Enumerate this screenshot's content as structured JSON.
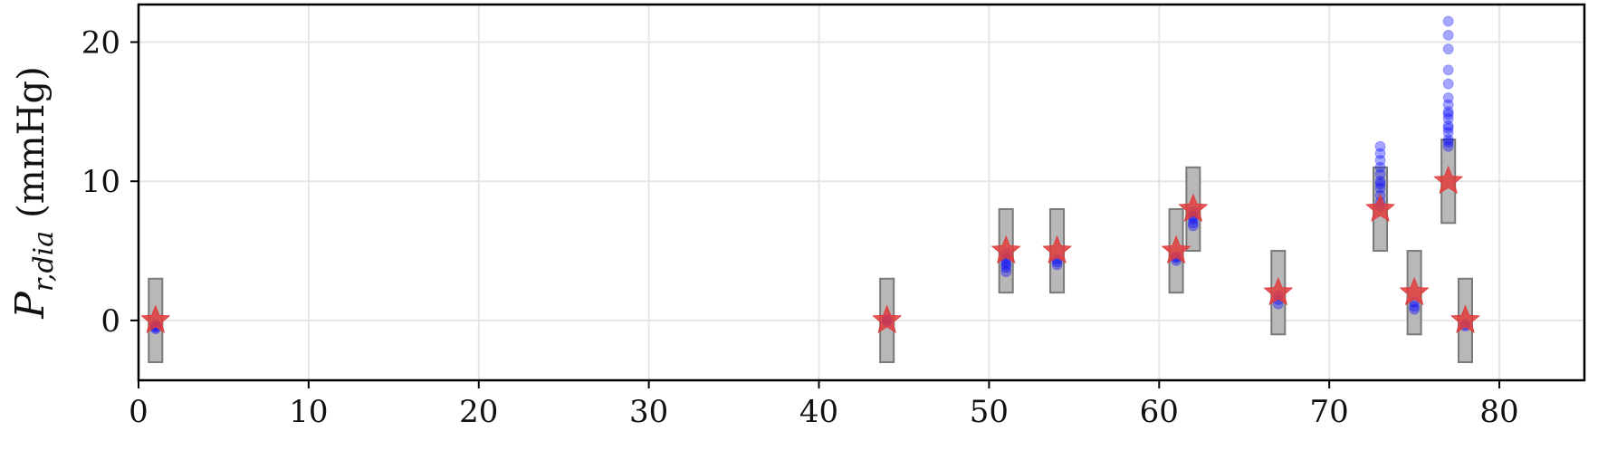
{
  "chart_data": {
    "type": "scatter",
    "title": "",
    "xlabel": "",
    "ylabel": {
      "symbol": "P",
      "subscript": "r,dia",
      "unit": "(mmHg)"
    },
    "xlim": [
      0,
      85
    ],
    "ylim": [
      -4.3,
      22.7
    ],
    "x_ticks": [
      0,
      10,
      20,
      30,
      40,
      50,
      60,
      70,
      80
    ],
    "y_ticks": [
      0,
      10,
      20
    ],
    "x_tick_labels": [
      "0",
      "10",
      "20",
      "30",
      "40",
      "50",
      "60",
      "70",
      "80"
    ],
    "y_tick_labels": [
      "0",
      "10",
      "20"
    ],
    "grid": true,
    "colors": {
      "box_fill": "#b8b8b8",
      "box_edge": "#7a7a7a",
      "star": "#e03c3c",
      "points": "#0000ff",
      "grid": "#e6e6e6",
      "axes": "#000000"
    },
    "groups": [
      {
        "x": 1,
        "target": 0,
        "range": [
          -3,
          3
        ],
        "points": [
          -0.5,
          -0.3,
          -0.6,
          -0.4
        ]
      },
      {
        "x": 44,
        "target": 0,
        "range": [
          -3,
          3
        ],
        "points": [
          0,
          0.1,
          -0.1
        ]
      },
      {
        "x": 51,
        "target": 5,
        "range": [
          2,
          8
        ],
        "points": [
          4.5,
          4.2,
          3.8,
          3.5,
          4.8,
          4.0
        ]
      },
      {
        "x": 54,
        "target": 5,
        "range": [
          2,
          8
        ],
        "points": [
          4.2,
          4.0,
          4.4
        ]
      },
      {
        "x": 61,
        "target": 5,
        "range": [
          2,
          8
        ],
        "points": [
          4.5,
          4.3,
          4.6
        ]
      },
      {
        "x": 62,
        "target": 8,
        "range": [
          5,
          11
        ],
        "points": [
          7.0,
          7.3,
          6.8,
          7.5,
          7.8
        ]
      },
      {
        "x": 67,
        "target": 2,
        "range": [
          -1,
          5
        ],
        "points": [
          1.5,
          1.2,
          1.8
        ]
      },
      {
        "x": 73,
        "target": 8,
        "range": [
          5,
          11
        ],
        "points": [
          8.5,
          9.0,
          9.5,
          10.0,
          10.5,
          11.0,
          11.5,
          12.0,
          12.5,
          8.2,
          9.8
        ]
      },
      {
        "x": 75,
        "target": 2,
        "range": [
          -1,
          5
        ],
        "points": [
          1.0,
          1.3,
          0.8
        ]
      },
      {
        "x": 77,
        "target": 10,
        "range": [
          7,
          13
        ],
        "points": [
          12.5,
          13.0,
          13.5,
          14.0,
          14.5,
          15.0,
          15.5,
          16.0,
          17.0,
          18.0,
          19.5,
          20.5,
          21.5,
          12.8,
          13.8,
          14.8
        ]
      },
      {
        "x": 78,
        "target": 0,
        "range": [
          -3,
          3
        ],
        "points": [
          -0.4,
          -0.3
        ]
      }
    ]
  }
}
